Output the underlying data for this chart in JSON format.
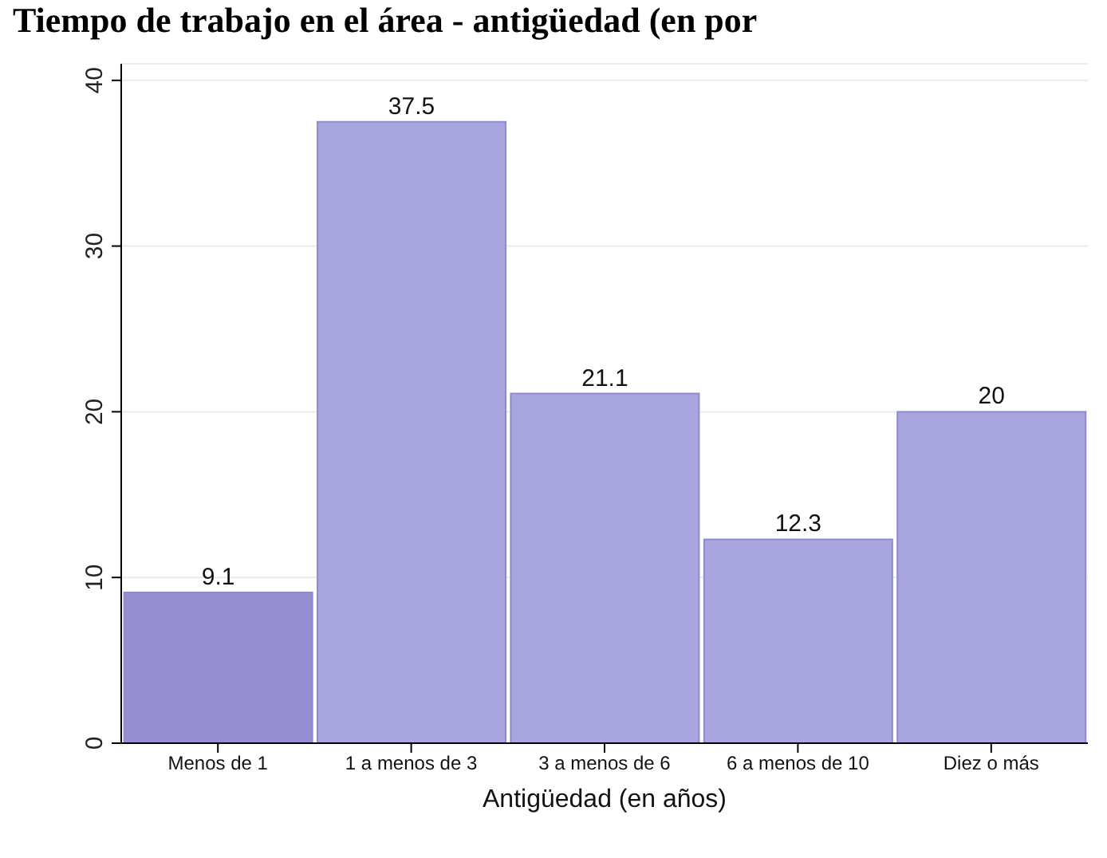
{
  "chart_data": {
    "type": "bar",
    "title": "Tiempo de trabajo en el área - antigüedad (en por",
    "xlabel": "Antigüedad (en años)",
    "categories": [
      "Menos de 1",
      "1 a menos de 3",
      "3 a menos de 6",
      "6 a menos de 10",
      "Diez o más"
    ],
    "values": [
      9.1,
      37.5,
      21.1,
      12.3,
      20
    ],
    "colors": [
      "#958fd1",
      "#a9a5de",
      "#a9a5de",
      "#a9a5de",
      "#a9a5de"
    ],
    "ylim": [
      0,
      41
    ],
    "yticks": [
      0,
      10,
      20,
      30,
      40
    ],
    "grid": "y",
    "data_labels": true
  }
}
